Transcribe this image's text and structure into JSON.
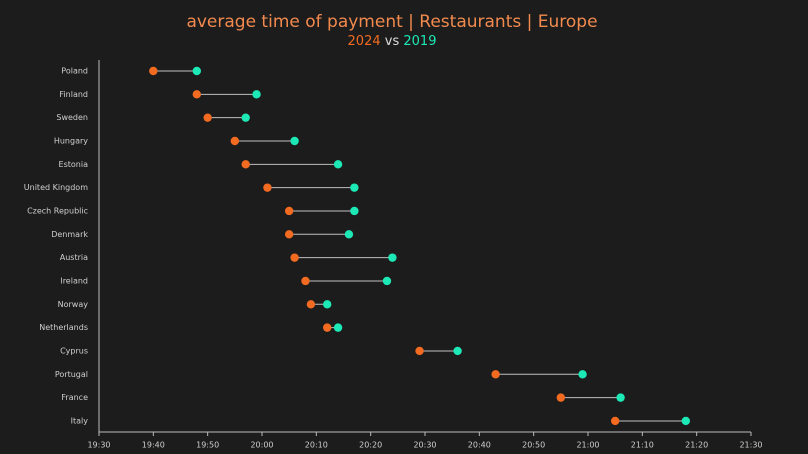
{
  "chart_data": {
    "type": "dumbbell",
    "title": "average time of payment | Restaurants | Europe",
    "subtitle_separator": "vs",
    "categories": [
      "Poland",
      "Finland",
      "Sweden",
      "Hungary",
      "Estonia",
      "United Kingdom",
      "Czech Republic",
      "Denmark",
      "Austria",
      "Ireland",
      "Norway",
      "Netherlands",
      "Cyprus",
      "Portugal",
      "France",
      "Italy"
    ],
    "series": [
      {
        "name": "2024",
        "color": "#f26b21",
        "values": [
          1180,
          1188,
          1190,
          1195,
          1197,
          1201,
          1205,
          1205,
          1206,
          1208,
          1209,
          1212,
          1229,
          1243,
          1255,
          1265
        ]
      },
      {
        "name": "2019",
        "color": "#1de9b6",
        "values": [
          1188,
          1199,
          1197,
          1206,
          1214,
          1217,
          1217,
          1216,
          1224,
          1223,
          1212,
          1214,
          1236,
          1259,
          1266,
          1278
        ]
      }
    ],
    "xlim": [
      1170,
      1290
    ],
    "xticks": [
      {
        "value": 1170,
        "label": "19:30"
      },
      {
        "value": 1180,
        "label": "19:40"
      },
      {
        "value": 1190,
        "label": "19:50"
      },
      {
        "value": 1200,
        "label": "20:00"
      },
      {
        "value": 1210,
        "label": "20:10"
      },
      {
        "value": 1220,
        "label": "20:20"
      },
      {
        "value": 1230,
        "label": "20:30"
      },
      {
        "value": 1240,
        "label": "20:40"
      },
      {
        "value": 1250,
        "label": "20:50"
      },
      {
        "value": 1260,
        "label": "21:00"
      },
      {
        "value": 1270,
        "label": "21:10"
      },
      {
        "value": 1280,
        "label": "21:20"
      },
      {
        "value": 1290,
        "label": "21:30"
      }
    ]
  }
}
